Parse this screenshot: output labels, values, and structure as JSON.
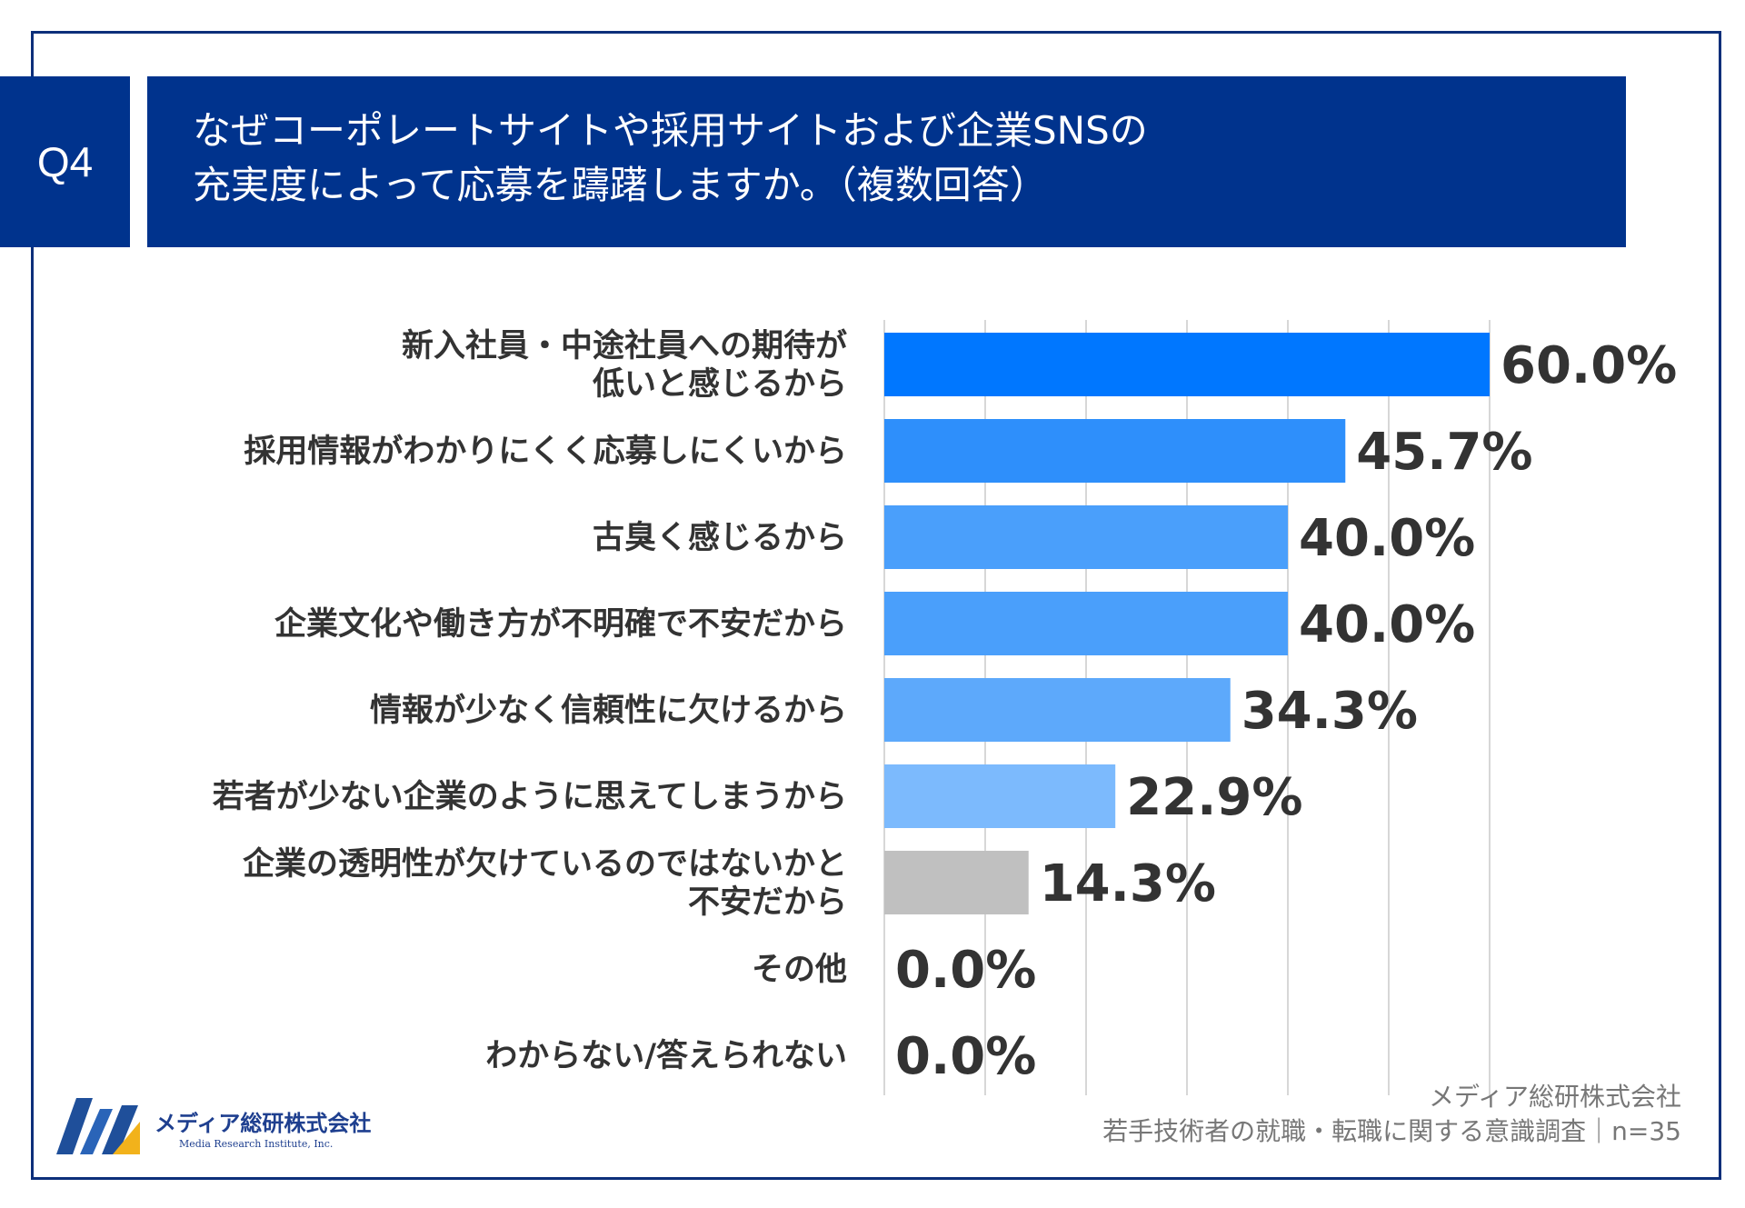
{
  "badge": "Q4",
  "title": {
    "line1": "なぜコーポレートサイトや採用サイトおよび企業SNSの",
    "line2": "充実度によって応募を躊躇しますか。（複数回答）"
  },
  "chart_data": {
    "type": "bar",
    "orientation": "horizontal",
    "title": "なぜコーポレートサイトや採用サイトおよび企業SNSの充実度によって応募を躊躇しますか。（複数回答）",
    "xlim": [
      0,
      60
    ],
    "grid": true,
    "categories": [
      [
        "新入社員・中途社員への期待が",
        "低いと感じるから"
      ],
      [
        "採用情報がわかりにくく応募しにくいから"
      ],
      [
        "古臭く感じるから"
      ],
      [
        "企業文化や働き方が不明確で不安だから"
      ],
      [
        "情報が少なく信頼性に欠けるから"
      ],
      [
        "若者が少ない企業のように思えてしまうから"
      ],
      [
        "企業の透明性が欠けているのではないかと",
        "不安だから"
      ],
      [
        "その他"
      ],
      [
        "わからない/答えられない"
      ]
    ],
    "values": [
      60.0,
      45.7,
      40.0,
      40.0,
      34.3,
      22.9,
      14.3,
      0.0,
      0.0
    ],
    "value_labels": [
      "60.0%",
      "45.7%",
      "40.0%",
      "40.0%",
      "34.3%",
      "22.9%",
      "14.3%",
      "0.0%",
      "0.0%"
    ],
    "bar_colors": [
      "#0077ff",
      "#2e8ffb",
      "#4a9ffb",
      "#4a9ffb",
      "#5da9fb",
      "#7cbafd",
      "#c0c0c0",
      "#c0c0c0",
      "#c0c0c0"
    ]
  },
  "logo": {
    "name": "メディア総研株式会社",
    "sub": "Media Research Institute, Inc."
  },
  "footer": {
    "company": "メディア総研株式会社",
    "survey": "若手技術者の就職・転職に関する意識調査｜n=35"
  }
}
